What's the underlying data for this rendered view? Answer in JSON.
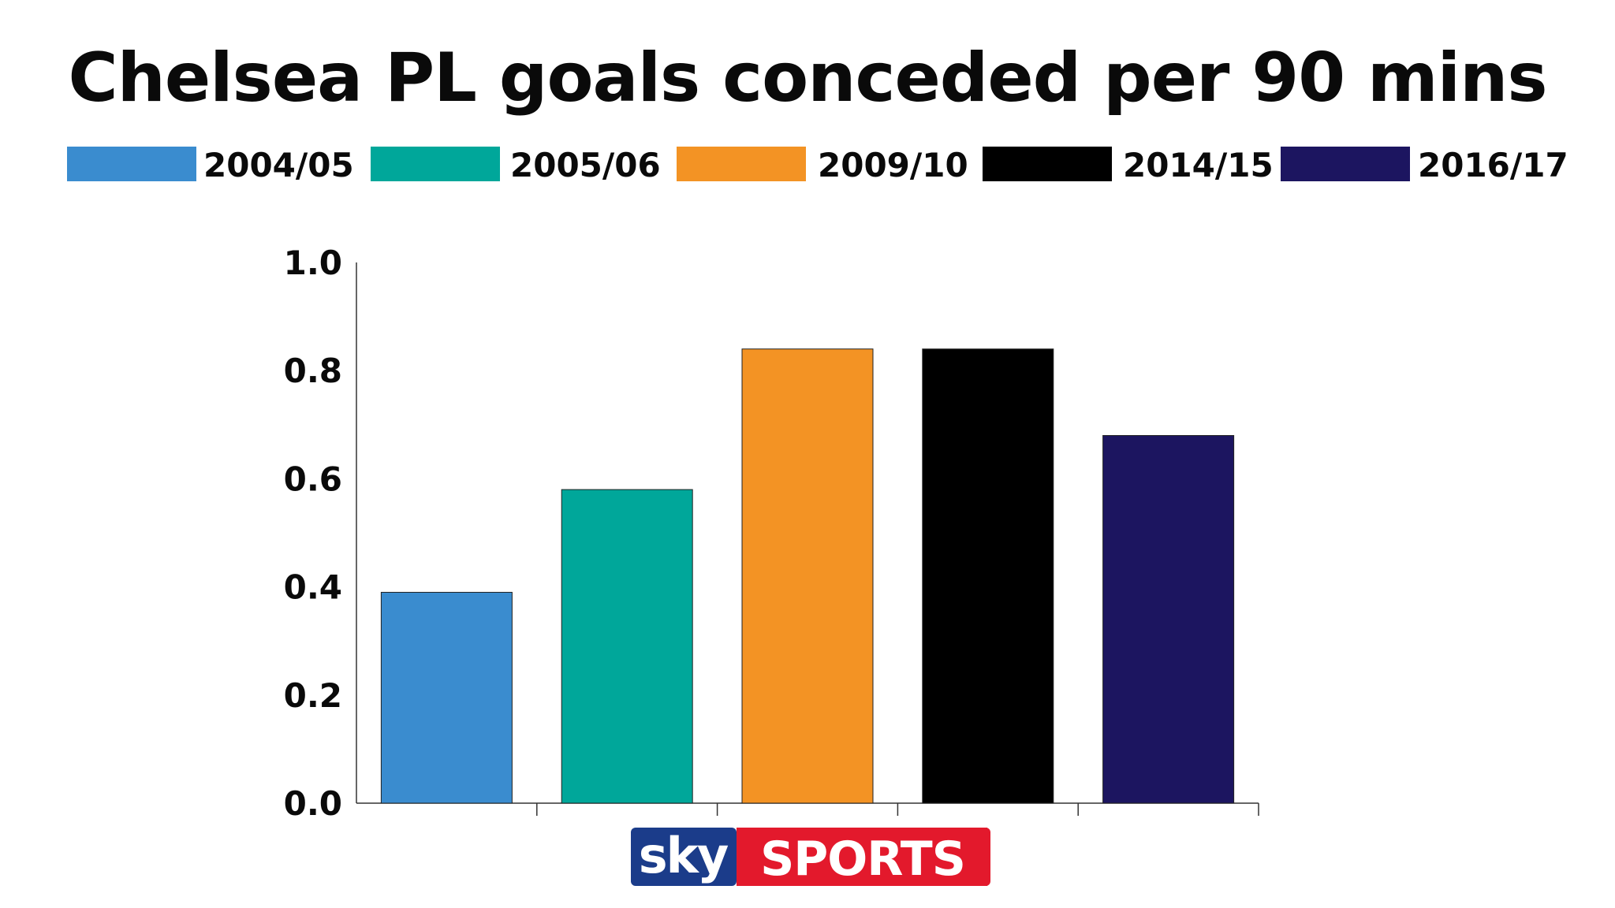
{
  "chart_data": {
    "type": "bar",
    "title": "Chelsea PL goals conceded per 90 mins",
    "xlabel": "",
    "ylabel": "",
    "categories": [
      "2004/05",
      "2005/06",
      "2009/10",
      "2014/15",
      "2016/17"
    ],
    "values": [
      0.39,
      0.58,
      0.84,
      0.84,
      0.68
    ],
    "colors": [
      "#3a8ccf",
      "#00a79a",
      "#f39324",
      "#000000",
      "#1c1560"
    ],
    "ylim": [
      0,
      1.0
    ],
    "yticks": [
      "0.0",
      "0.2",
      "0.4",
      "0.6",
      "0.8",
      "1.0"
    ],
    "legend": {
      "placement": "top",
      "entries": [
        "2004/05",
        "2005/06",
        "2009/10",
        "2014/15",
        "2016/17"
      ]
    },
    "grid": false
  },
  "logo": {
    "sky": "sky",
    "sports": "SPORTS",
    "colors": {
      "blue": "#1b3c8a",
      "red": "#e3192c"
    }
  }
}
